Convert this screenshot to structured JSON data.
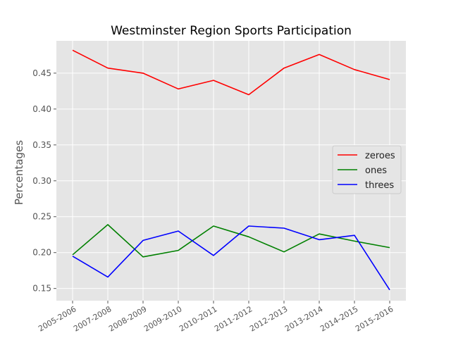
{
  "chart_data": {
    "type": "line",
    "title": "Westminster Region Sports Participation",
    "xlabel": "",
    "ylabel": "Percentages",
    "categories": [
      "2005-2006",
      "2007-2008",
      "2008-2009",
      "2009-2010",
      "2010-2011",
      "2011-2012",
      "2012-2013",
      "2013-2014",
      "2014-2015",
      "2015-2016"
    ],
    "ylim": [
      0.133,
      0.495
    ],
    "yticks": [
      "0.15",
      "0.20",
      "0.25",
      "0.30",
      "0.35",
      "0.40",
      "0.45"
    ],
    "grid": true,
    "legend_position": "center-right",
    "series": [
      {
        "name": "zeroes",
        "color": "#ff0000",
        "values": [
          0.482,
          0.457,
          0.45,
          0.428,
          0.44,
          0.42,
          0.457,
          0.476,
          0.455,
          0.441
        ]
      },
      {
        "name": "ones",
        "color": "#008000",
        "values": [
          0.197,
          0.239,
          0.194,
          0.203,
          0.237,
          0.222,
          0.201,
          0.226,
          0.216,
          0.207
        ]
      },
      {
        "name": "threes",
        "color": "#0000ff",
        "values": [
          0.195,
          0.166,
          0.217,
          0.23,
          0.196,
          0.237,
          0.234,
          0.218,
          0.224,
          0.148
        ]
      }
    ],
    "colors": {
      "plot_background": "#e5e5e5",
      "grid": "#ffffff",
      "tick_label": "#555555"
    }
  }
}
